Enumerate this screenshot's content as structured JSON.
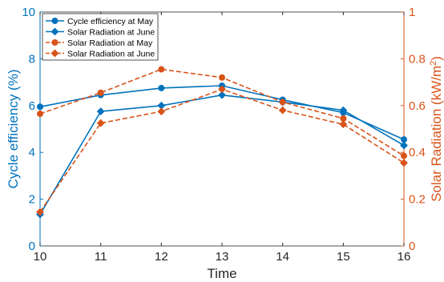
{
  "chart_data": {
    "type": "line",
    "x": [
      10,
      11,
      12,
      13,
      14,
      15,
      16
    ],
    "xlabel": "Time",
    "xlim": [
      10,
      16
    ],
    "xticks": [
      "10",
      "11",
      "12",
      "13",
      "14",
      "15",
      "16"
    ],
    "left_axis": {
      "label": "Cycle efficiency (%)",
      "lim": [
        0,
        10
      ],
      "ticks": [
        "0",
        "2",
        "4",
        "6",
        "8",
        "10"
      ],
      "color": "#0072BD"
    },
    "right_axis": {
      "label_main": "Solar Radiation (kW/m",
      "label_sup": "2",
      "label_close": ")",
      "lim": [
        0,
        1
      ],
      "ticks": [
        "0",
        "0.2",
        "0.4",
        "0.6",
        "0.8",
        "1"
      ],
      "color": "#D95319"
    },
    "series": [
      {
        "name": "Cycle efficiency at May",
        "axis": "left",
        "color": "#0072BD",
        "marker": "circle",
        "dashed": false,
        "values": [
          5.95,
          6.45,
          6.75,
          6.85,
          6.25,
          5.7,
          4.55
        ]
      },
      {
        "name": "Solar Radiation at June",
        "axis": "left",
        "color": "#0072BD",
        "marker": "diamond",
        "dashed": false,
        "values": [
          1.35,
          5.75,
          6.0,
          6.45,
          6.15,
          5.8,
          4.3
        ]
      },
      {
        "name": "Solar Radiation at May",
        "axis": "right",
        "color": "#D95319",
        "marker": "circle",
        "dashed": true,
        "values": [
          0.565,
          0.655,
          0.755,
          0.72,
          0.615,
          0.545,
          0.385
        ]
      },
      {
        "name": "Solar Radiation at June",
        "axis": "right",
        "color": "#D95319",
        "marker": "diamond",
        "dashed": true,
        "values": [
          0.145,
          0.525,
          0.575,
          0.67,
          0.58,
          0.52,
          0.355
        ]
      }
    ],
    "legend_position": "top-left",
    "grid": false
  }
}
